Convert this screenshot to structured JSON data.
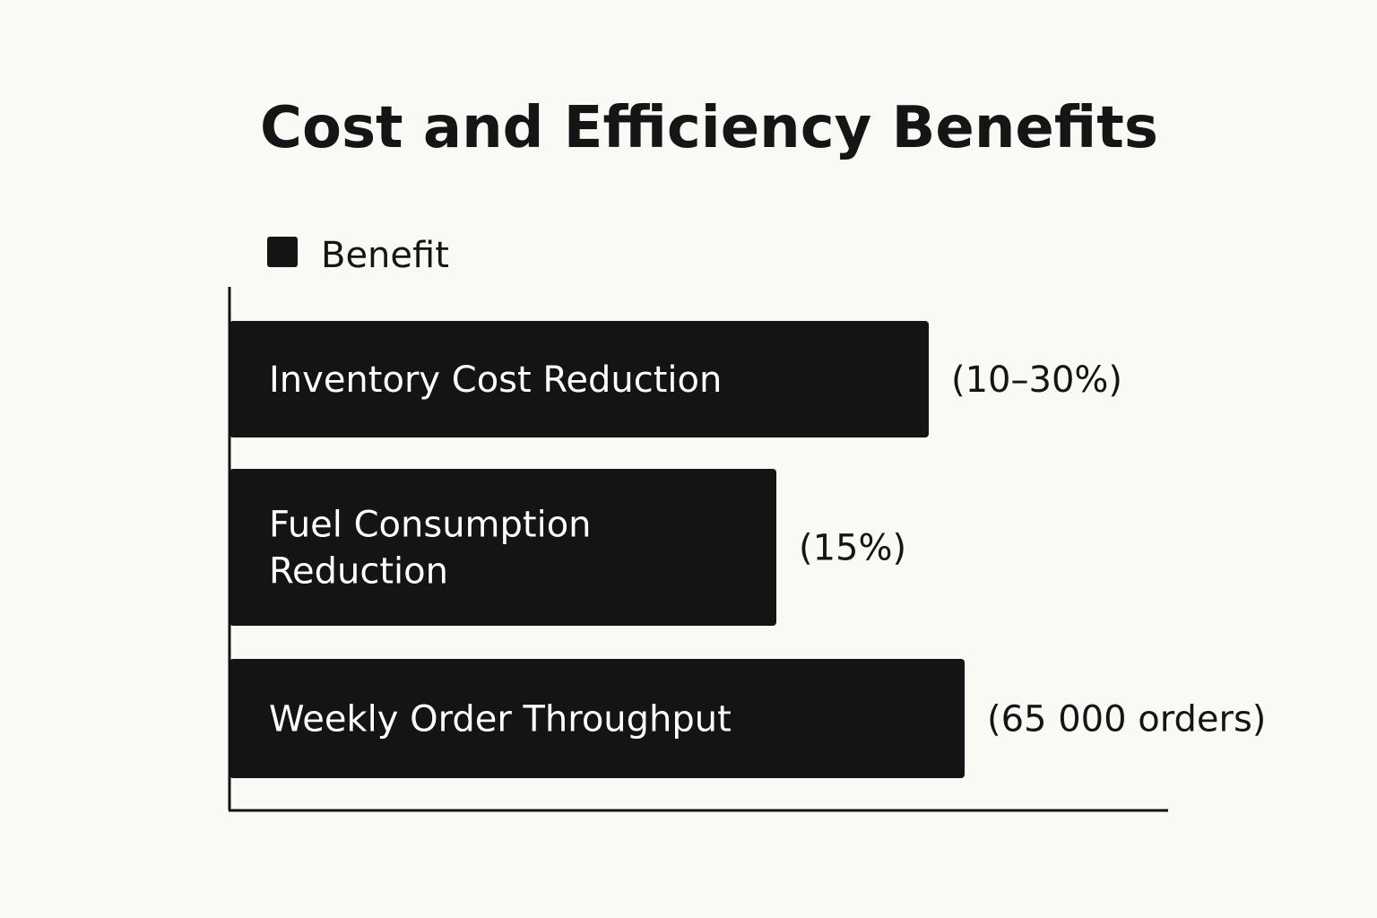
{
  "chart_data": {
    "type": "bar",
    "orientation": "horizontal",
    "title": "Cost and Efficiency Benefits",
    "legend": {
      "entries": [
        "Benefit"
      ],
      "placement": "top-left"
    },
    "categories": [
      [
        "Inventory Cost Reduction"
      ],
      [
        "Fuel Consumption",
        "Reduction"
      ],
      [
        "Weekly Order Throughput"
      ]
    ],
    "series": [
      {
        "name": "Benefit",
        "values": [
          0.78,
          0.61,
          0.82
        ]
      }
    ],
    "value_labels": [
      "(10–30%)",
      "(15%)",
      "(65 000 orders)"
    ],
    "xlim": [
      0,
      1
    ],
    "grid": false,
    "colors": {
      "bar": "#141414",
      "bar_text": "#ffffff",
      "background": "#faf9f5"
    }
  }
}
